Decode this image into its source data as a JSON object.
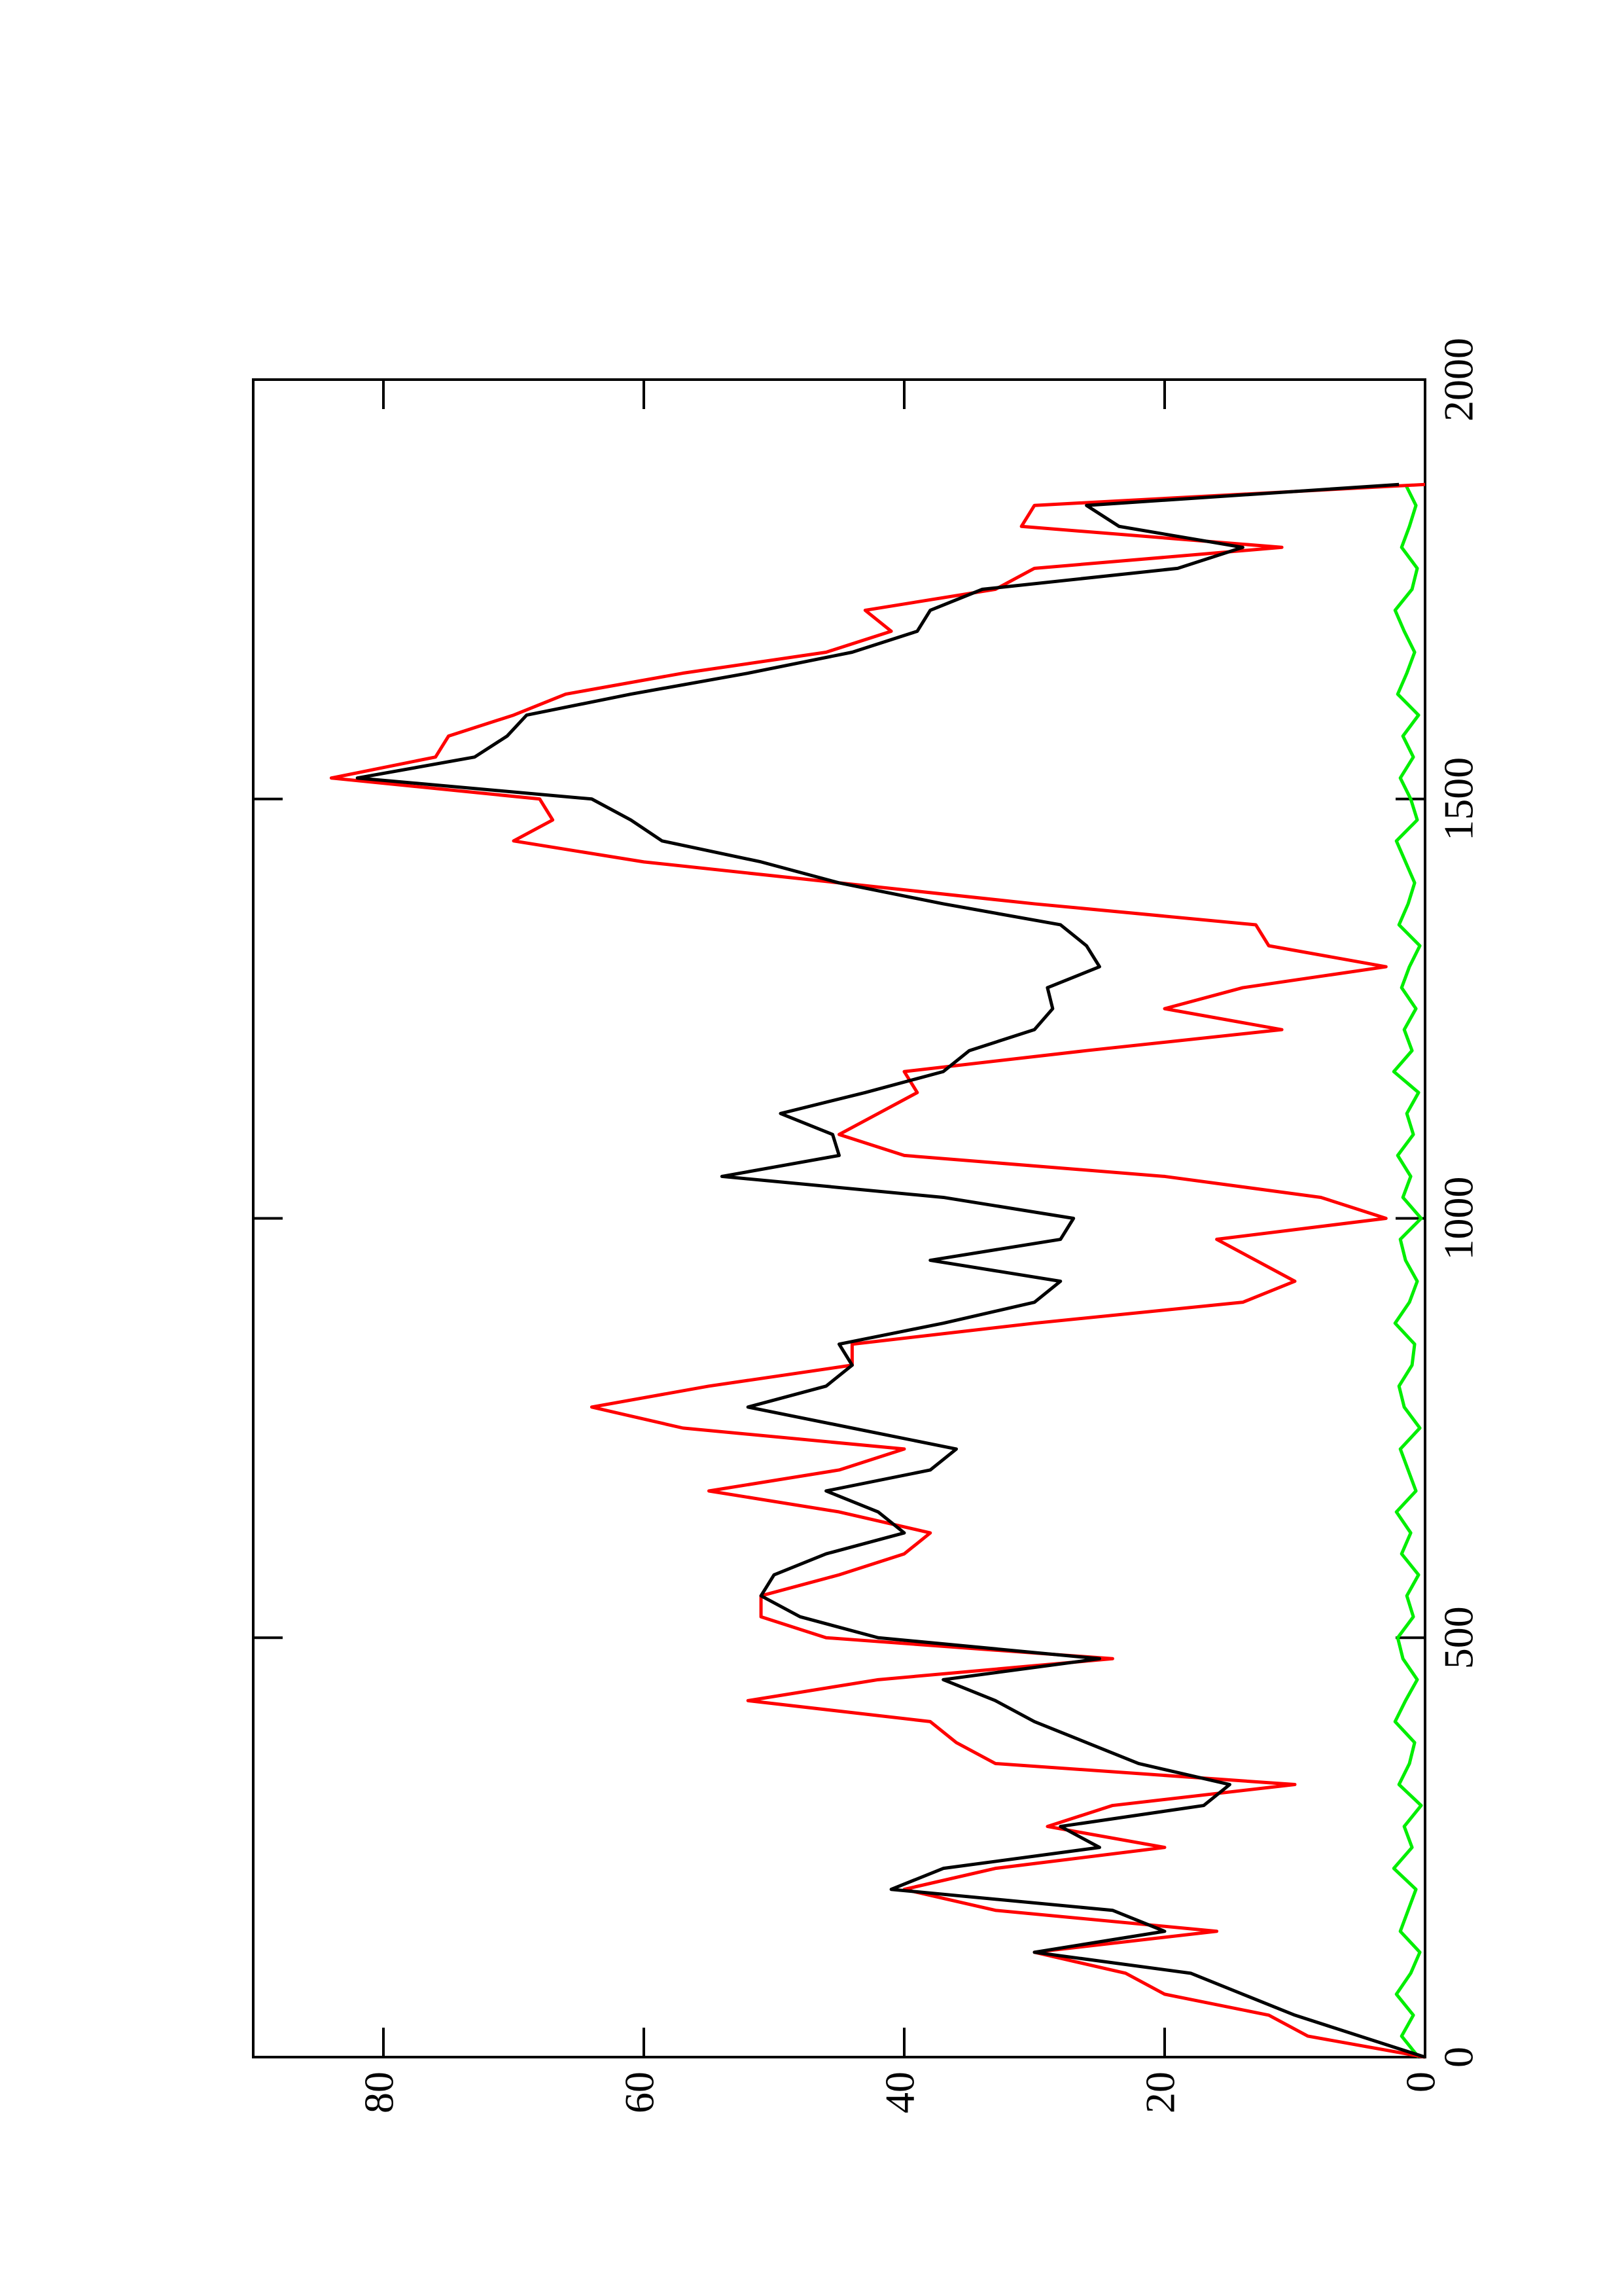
{
  "chart_data": {
    "type": "line",
    "x": [
      0,
      25,
      50,
      75,
      100,
      125,
      150,
      175,
      200,
      225,
      250,
      275,
      300,
      325,
      350,
      375,
      400,
      425,
      450,
      475,
      500,
      525,
      550,
      575,
      600,
      625,
      650,
      675,
      700,
      725,
      750,
      775,
      800,
      825,
      850,
      875,
      900,
      925,
      950,
      975,
      1000,
      1025,
      1050,
      1075,
      1100,
      1125,
      1150,
      1175,
      1200,
      1225,
      1250,
      1275,
      1300,
      1325,
      1350,
      1375,
      1400,
      1425,
      1450,
      1475,
      1500,
      1525,
      1550,
      1575,
      1600,
      1625,
      1650,
      1675,
      1700,
      1725,
      1750,
      1775,
      1800,
      1825,
      1850,
      1875
    ],
    "series": [
      {
        "color": "#000000",
        "values": [
          0,
          5,
          10,
          14,
          18,
          30,
          20,
          24,
          41,
          37,
          25,
          28,
          17,
          15,
          22,
          26,
          30,
          33,
          37,
          25,
          42,
          48,
          51,
          50,
          46,
          40,
          42,
          46,
          38,
          36,
          44,
          52,
          46,
          44,
          45,
          37,
          30,
          28,
          38,
          28,
          27,
          37,
          54,
          45,
          45.5,
          49.5,
          43,
          37,
          35,
          30,
          28.6,
          29,
          25,
          26,
          28,
          37,
          45,
          51,
          58.6,
          61,
          64,
          82,
          73,
          70.5,
          69,
          61,
          52,
          44,
          39,
          38,
          34,
          19,
          14,
          23.5,
          26,
          2
        ]
      },
      {
        "color": "#ff0000",
        "values": [
          0,
          9,
          12,
          20,
          23,
          30,
          16,
          33,
          40,
          33,
          20,
          29,
          24,
          10,
          33,
          36,
          38,
          52,
          42,
          24,
          46,
          51,
          51,
          45,
          40,
          38,
          45,
          55,
          45,
          40,
          57,
          64,
          55,
          44,
          44,
          30,
          14,
          10,
          13,
          16,
          3,
          8,
          20,
          40,
          45,
          42,
          39,
          40,
          26,
          11,
          20,
          14,
          3,
          12,
          13,
          30,
          45,
          60,
          70,
          67,
          68,
          84,
          76,
          75,
          70,
          66,
          57,
          46,
          41,
          43,
          33,
          30,
          11,
          31,
          30,
          0
        ]
      },
      {
        "color": "#00ee00",
        "values": [
          0.5,
          1.8,
          0.9,
          2.2,
          1.1,
          0.4,
          1.9,
          1.3,
          0.7,
          2.4,
          1.0,
          1.6,
          0.3,
          2.0,
          1.2,
          0.8,
          2.3,
          1.5,
          0.6,
          1.7,
          2.1,
          0.9,
          1.4,
          0.5,
          1.8,
          1.1,
          2.2,
          0.7,
          1.3,
          1.9,
          0.4,
          1.6,
          2.0,
          1.0,
          0.8,
          2.3,
          1.2,
          0.6,
          1.5,
          1.9,
          0.3,
          1.7,
          1.1,
          2.1,
          0.9,
          1.4,
          0.5,
          2.4,
          1.0,
          1.6,
          0.7,
          1.8,
          1.2,
          0.4,
          2.0,
          1.3,
          0.8,
          1.5,
          2.2,
          0.6,
          1.1,
          1.9,
          0.9,
          1.7,
          0.5,
          2.1,
          1.4,
          0.8,
          1.6,
          2.3,
          1.0,
          0.6,
          1.8,
          1.2,
          0.7,
          1.5
        ]
      }
    ],
    "xlim": [
      0,
      2000
    ],
    "xticks": [
      0,
      500,
      1000,
      1500,
      2000
    ],
    "ylim": [
      0,
      90
    ],
    "yticks": [
      0,
      20,
      40,
      60,
      80
    ]
  }
}
